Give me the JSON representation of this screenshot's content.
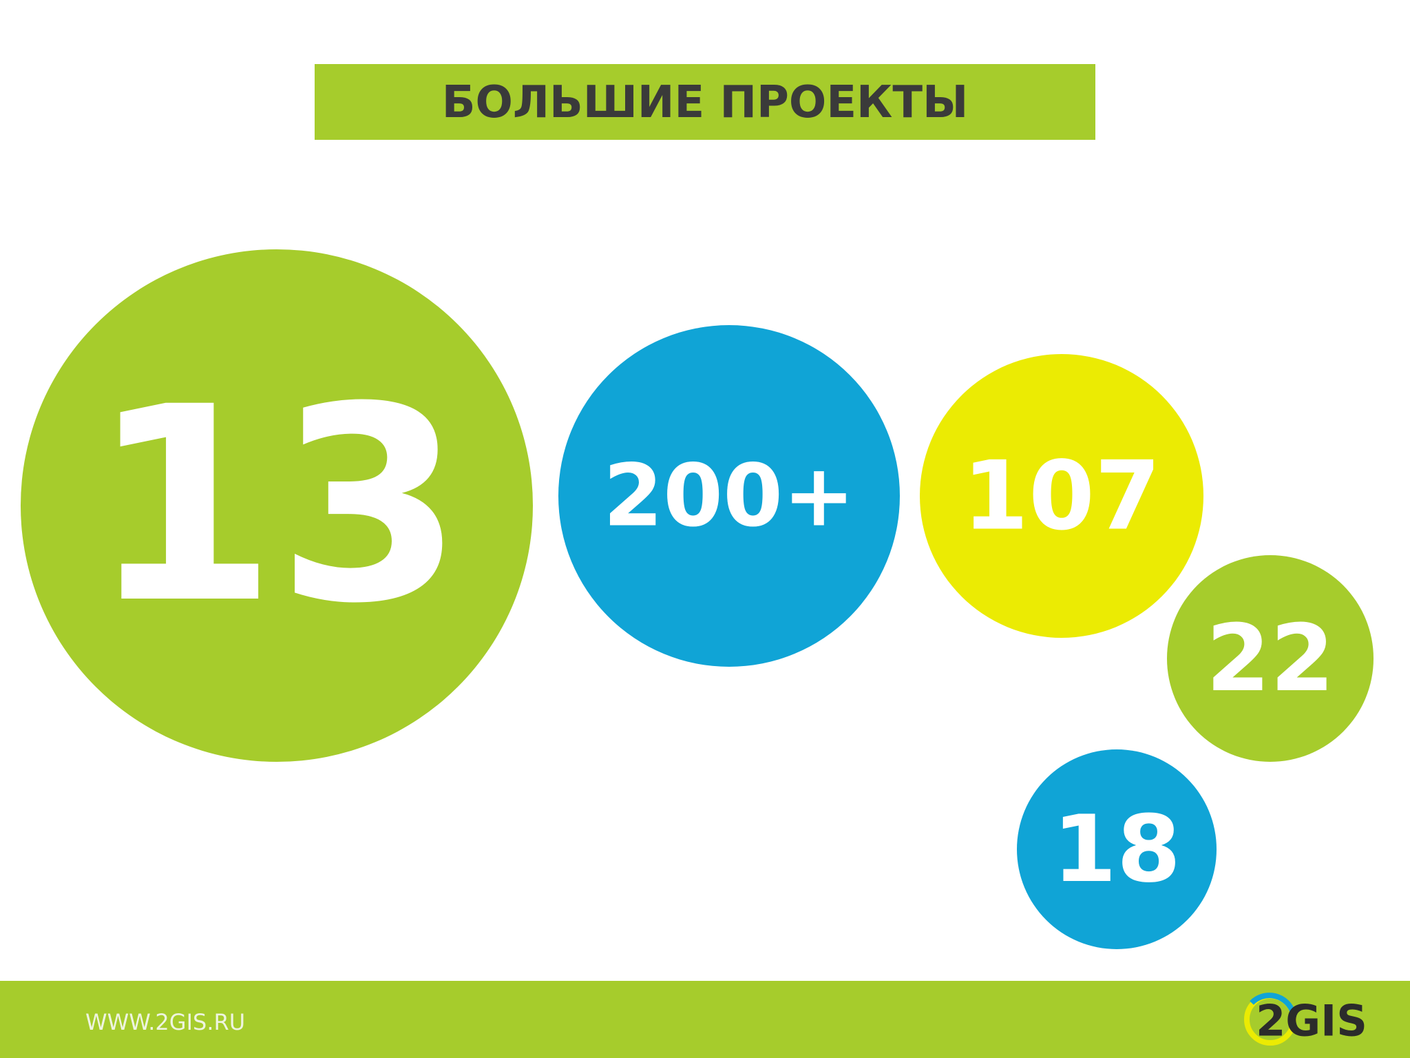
{
  "header": {
    "title": "БОЛЬШИЕ ПРОЕКТЫ"
  },
  "bubbles": [
    {
      "label": "13"
    },
    {
      "label": "200+"
    },
    {
      "label": "107"
    },
    {
      "label": "22"
    },
    {
      "label": "18"
    }
  ],
  "footer": {
    "url": "WWW.2GIS.RU",
    "logo": "2GIS"
  }
}
